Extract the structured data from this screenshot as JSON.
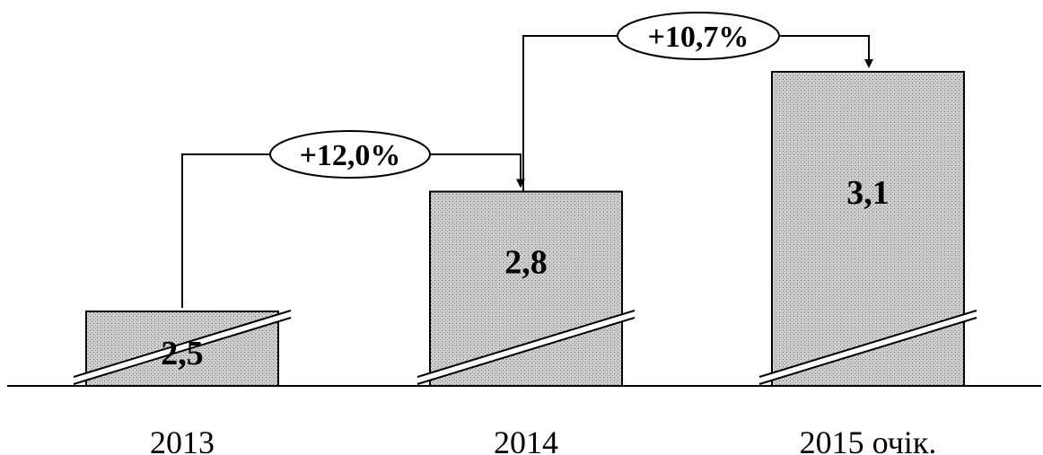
{
  "chart_data": {
    "type": "bar",
    "categories": [
      "2013",
      "2014",
      "2015 очік."
    ],
    "values": [
      2.5,
      2.8,
      3.1
    ],
    "value_labels": [
      "2,5",
      "2,8",
      "3,1"
    ],
    "axis_break": true,
    "growth": [
      {
        "from": 0,
        "to": 1,
        "label": "+12,0%"
      },
      {
        "from": 1,
        "to": 2,
        "label": "+10,7%"
      }
    ]
  }
}
